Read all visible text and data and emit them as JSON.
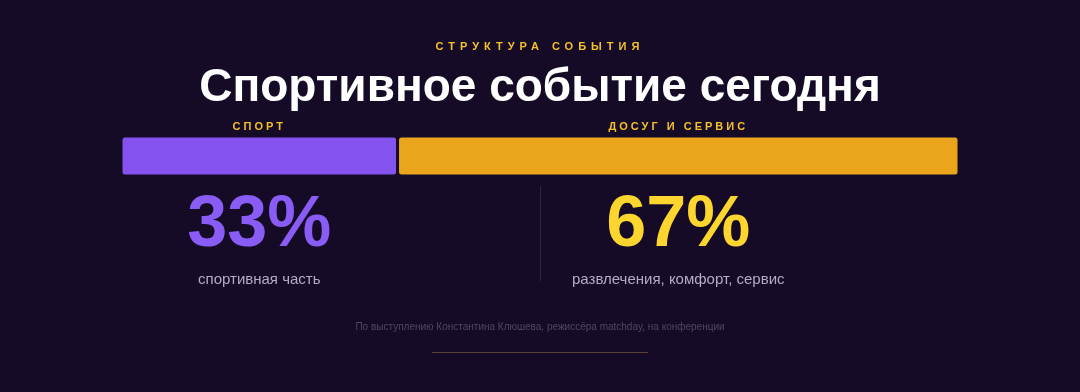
{
  "chart_data": {
    "type": "bar",
    "orientation": "horizontal",
    "stacked": true,
    "subtitle": "СТРУКТУРА СОБЫТИЯ",
    "title": "Спортивное событие сегодня",
    "categories": [
      null
    ],
    "series": [
      {
        "name": "СПОРТ",
        "color": "#8452ee",
        "values": [
          33
        ],
        "value_labels": [
          "33%"
        ]
      },
      {
        "name": "ДОСУГ И СЕРВИС",
        "color": "#eaa51c",
        "values": [
          67
        ],
        "value_labels": [
          "67%"
        ]
      }
    ],
    "annotations": [
      "спортивная часть",
      "развлечения, комфорт, сервис",
      "По выступлению Константина Клюшева, режиссёра matchday, на конференции"
    ]
  }
}
